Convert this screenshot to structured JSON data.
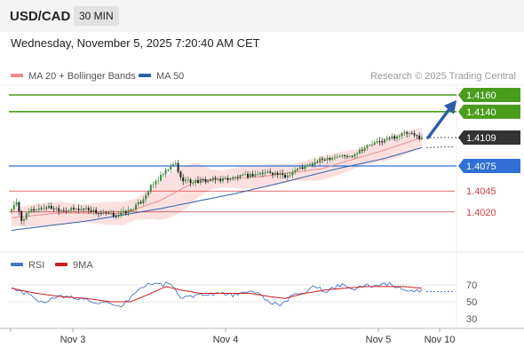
{
  "header": {
    "symbol": "USD/CAD",
    "timeframe": "30 MIN"
  },
  "datetime": "Wednesday, November 5, 2025 7:20:40 AM CET",
  "legend": {
    "ma_bb": {
      "label": "MA 20 + Bollinger Bands",
      "color": "#f08c8c"
    },
    "ma50": {
      "label": "MA 50",
      "color": "#2e5fa8"
    }
  },
  "credit": "Research © 2025 Trading Central",
  "colors": {
    "target": "#4a9c1c",
    "pivot": "#2f6fd6",
    "support": "#d34040",
    "current_bg": "#333333",
    "arrow": "#2b5aa6",
    "rsi": "#4a74c9",
    "rsi_ma": "#cc1f1f",
    "up_candle": "#3f8a3f",
    "down_candle": "#222222",
    "band_fill": "#fbdada"
  },
  "chart_data": [
    {
      "type": "candlestick",
      "title": "",
      "ylim": [
        4000,
        4170
      ],
      "x_ticks": [
        "Nov 3",
        "Nov 4",
        "Nov 5",
        "Nov 10"
      ],
      "levels": [
        {
          "value": 4160,
          "label": "1.4160",
          "kind": "target"
        },
        {
          "value": 4140,
          "label": "1.4140",
          "kind": "target"
        },
        {
          "value": 4109,
          "label": "1.4109",
          "kind": "current"
        },
        {
          "value": 4075,
          "label": "1.4075",
          "kind": "pivot"
        },
        {
          "value": 4045,
          "label": "1.4045",
          "kind": "support"
        },
        {
          "value": 4020,
          "label": "1.4020",
          "kind": "support"
        }
      ],
      "anchors": [
        [
          0,
          4024
        ],
        [
          2,
          4030
        ],
        [
          4,
          4010
        ],
        [
          8,
          4022
        ],
        [
          14,
          4026
        ],
        [
          22,
          4022
        ],
        [
          30,
          4024
        ],
        [
          36,
          4018
        ],
        [
          42,
          4016
        ],
        [
          48,
          4022
        ],
        [
          52,
          4032
        ],
        [
          56,
          4050
        ],
        [
          60,
          4062
        ],
        [
          64,
          4074
        ],
        [
          66,
          4078
        ],
        [
          68,
          4060
        ],
        [
          72,
          4056
        ],
        [
          80,
          4058
        ],
        [
          88,
          4060
        ],
        [
          96,
          4064
        ],
        [
          104,
          4068
        ],
        [
          110,
          4062
        ],
        [
          114,
          4070
        ],
        [
          120,
          4076
        ],
        [
          126,
          4084
        ],
        [
          132,
          4087
        ],
        [
          136,
          4086
        ],
        [
          140,
          4094
        ],
        [
          144,
          4100
        ],
        [
          148,
          4104
        ],
        [
          152,
          4108
        ],
        [
          156,
          4112
        ],
        [
          159,
          4114
        ],
        [
          162,
          4111
        ],
        [
          165,
          4109
        ]
      ],
      "ma20_anchors": [
        [
          0,
          4013
        ],
        [
          20,
          4019
        ],
        [
          45,
          4018
        ],
        [
          60,
          4034
        ],
        [
          75,
          4058
        ],
        [
          100,
          4062
        ],
        [
          125,
          4072
        ],
        [
          150,
          4094
        ],
        [
          165,
          4109
        ]
      ],
      "ma50_anchors": [
        [
          0,
          3998
        ],
        [
          30,
          4009
        ],
        [
          60,
          4024
        ],
        [
          90,
          4042
        ],
        [
          110,
          4056
        ],
        [
          130,
          4071
        ],
        [
          150,
          4084
        ],
        [
          165,
          4097
        ]
      ],
      "forecast_arrow": {
        "from": 4109,
        "to": 4158
      }
    },
    {
      "type": "line",
      "title": "",
      "legend": [
        {
          "name": "RSI",
          "color": "#4a74c9"
        },
        {
          "name": "9MA",
          "color": "#cc1f1f"
        }
      ],
      "ylim": [
        20,
        80
      ],
      "y_ticks": [
        "70",
        "50",
        "30"
      ],
      "rsi_anchors": [
        [
          0,
          66
        ],
        [
          6,
          60
        ],
        [
          12,
          50
        ],
        [
          20,
          56
        ],
        [
          28,
          54
        ],
        [
          34,
          50
        ],
        [
          40,
          46
        ],
        [
          44,
          42
        ],
        [
          48,
          56
        ],
        [
          52,
          66
        ],
        [
          56,
          72
        ],
        [
          60,
          70
        ],
        [
          64,
          72
        ],
        [
          68,
          54
        ],
        [
          74,
          58
        ],
        [
          82,
          60
        ],
        [
          90,
          58
        ],
        [
          98,
          62
        ],
        [
          104,
          50
        ],
        [
          108,
          44
        ],
        [
          114,
          60
        ],
        [
          118,
          62
        ],
        [
          122,
          70
        ],
        [
          126,
          60
        ],
        [
          132,
          70
        ],
        [
          138,
          64
        ],
        [
          142,
          70
        ],
        [
          148,
          68
        ],
        [
          152,
          72
        ],
        [
          156,
          66
        ],
        [
          160,
          64
        ],
        [
          163,
          62
        ],
        [
          165,
          63
        ]
      ],
      "ma9_anchors": [
        [
          0,
          66
        ],
        [
          10,
          60
        ],
        [
          20,
          56
        ],
        [
          30,
          54
        ],
        [
          40,
          50
        ],
        [
          48,
          50
        ],
        [
          56,
          60
        ],
        [
          62,
          68
        ],
        [
          68,
          64
        ],
        [
          76,
          60
        ],
        [
          86,
          60
        ],
        [
          96,
          60
        ],
        [
          104,
          56
        ],
        [
          110,
          54
        ],
        [
          118,
          60
        ],
        [
          126,
          64
        ],
        [
          134,
          66
        ],
        [
          142,
          68
        ],
        [
          150,
          68
        ],
        [
          158,
          68
        ],
        [
          165,
          66
        ]
      ]
    }
  ]
}
